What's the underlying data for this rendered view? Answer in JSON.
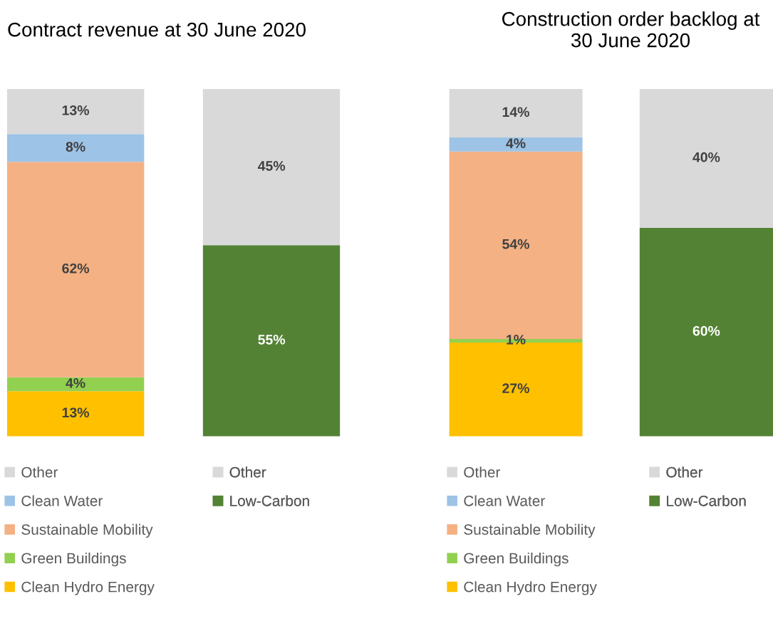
{
  "chart_data": [
    {
      "type": "bar",
      "title": "Contract revenue at 30 June 2020",
      "stacked": true,
      "legend": "bottom",
      "categories": [
        null,
        null
      ],
      "series": [
        {
          "name": "Clean Hydro Energy",
          "color": "#ffc000",
          "values": [
            13,
            null
          ],
          "value_labels": [
            "13%",
            null
          ]
        },
        {
          "name": "Green Buildings",
          "color": "#92d050",
          "values": [
            4,
            null
          ],
          "value_labels": [
            "4%",
            null
          ]
        },
        {
          "name": "Sustainable Mobility",
          "color": "#f4b183",
          "values": [
            62,
            null
          ],
          "value_labels": [
            "62%",
            null
          ]
        },
        {
          "name": "Clean Water",
          "color": "#9dc3e6",
          "values": [
            8,
            null
          ],
          "value_labels": [
            "8%",
            null
          ]
        },
        {
          "name": "Other",
          "color": "#d9d9d9",
          "values": [
            13,
            null
          ],
          "value_labels": [
            "13%",
            null
          ]
        },
        {
          "name": "Low-Carbon",
          "color": "#548235",
          "values": [
            null,
            55
          ],
          "value_labels": [
            null,
            "55%"
          ]
        },
        {
          "name": "Other",
          "color": "#d9d9d9",
          "values": [
            null,
            45
          ],
          "value_labels": [
            null,
            "45%"
          ]
        }
      ]
    },
    {
      "type": "bar",
      "title": "Construction order backlog at 30 June 2020",
      "stacked": true,
      "legend": "bottom",
      "categories": [
        null,
        null
      ],
      "series": [
        {
          "name": "Clean Hydro Energy",
          "color": "#ffc000",
          "values": [
            27,
            null
          ],
          "value_labels": [
            "27%",
            null
          ]
        },
        {
          "name": "Green Buildings",
          "color": "#92d050",
          "values": [
            1,
            null
          ],
          "value_labels": [
            "1%",
            null
          ]
        },
        {
          "name": "Sustainable Mobility",
          "color": "#f4b183",
          "values": [
            54,
            null
          ],
          "value_labels": [
            "54%",
            null
          ]
        },
        {
          "name": "Clean Water",
          "color": "#9dc3e6",
          "values": [
            4,
            null
          ],
          "value_labels": [
            "4%",
            null
          ]
        },
        {
          "name": "Other",
          "color": "#d9d9d9",
          "values": [
            14,
            null
          ],
          "value_labels": [
            "14%",
            null
          ]
        },
        {
          "name": "Low-Carbon",
          "color": "#548235",
          "values": [
            null,
            60
          ],
          "value_labels": [
            null,
            "60%"
          ]
        },
        {
          "name": "Other",
          "color": "#d9d9d9",
          "values": [
            null,
            40
          ],
          "value_labels": [
            null,
            "40%"
          ]
        }
      ]
    }
  ]
}
